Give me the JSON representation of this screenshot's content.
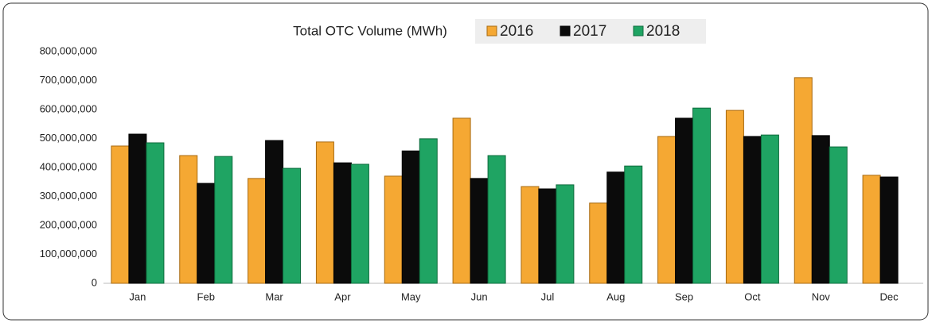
{
  "chart_data": {
    "type": "bar",
    "title": "Total OTC Volume (MWh)",
    "categories": [
      "Jan",
      "Feb",
      "Mar",
      "Apr",
      "May",
      "Jun",
      "Jul",
      "Aug",
      "Sep",
      "Oct",
      "Nov",
      "Dec"
    ],
    "series": [
      {
        "name": "2016",
        "color": "#f5a833",
        "values": [
          474000000,
          441000000,
          362000000,
          488000000,
          370000000,
          570000000,
          334000000,
          277000000,
          507000000,
          597000000,
          710000000,
          373000000
        ]
      },
      {
        "name": "2017",
        "color": "#0b0b0b",
        "values": [
          515000000,
          345000000,
          493000000,
          416000000,
          457000000,
          362000000,
          326000000,
          384000000,
          570000000,
          507000000,
          510000000,
          367000000
        ]
      },
      {
        "name": "2018",
        "color": "#1fa463",
        "values": [
          485000000,
          438000000,
          397000000,
          411000000,
          499000000,
          441000000,
          340000000,
          405000000,
          605000000,
          512000000,
          471000000,
          null
        ]
      }
    ],
    "ylim": [
      0,
      800000000
    ],
    "yticks": [
      0,
      {
        "value": 100000000,
        "label": "100,000,000"
      },
      {
        "value": 200000000,
        "label": "200,000,000"
      },
      {
        "value": 300000000,
        "label": "300,000,000"
      },
      {
        "value": 400000000,
        "label": "400,000,000"
      },
      {
        "value": 500000000,
        "label": "500,000,000"
      },
      {
        "value": 600000000,
        "label": "600,000,000"
      },
      {
        "value": 700000000,
        "label": "700,000,000"
      },
      {
        "value": 800000000,
        "label": "800,000,000"
      }
    ],
    "grid": false
  }
}
